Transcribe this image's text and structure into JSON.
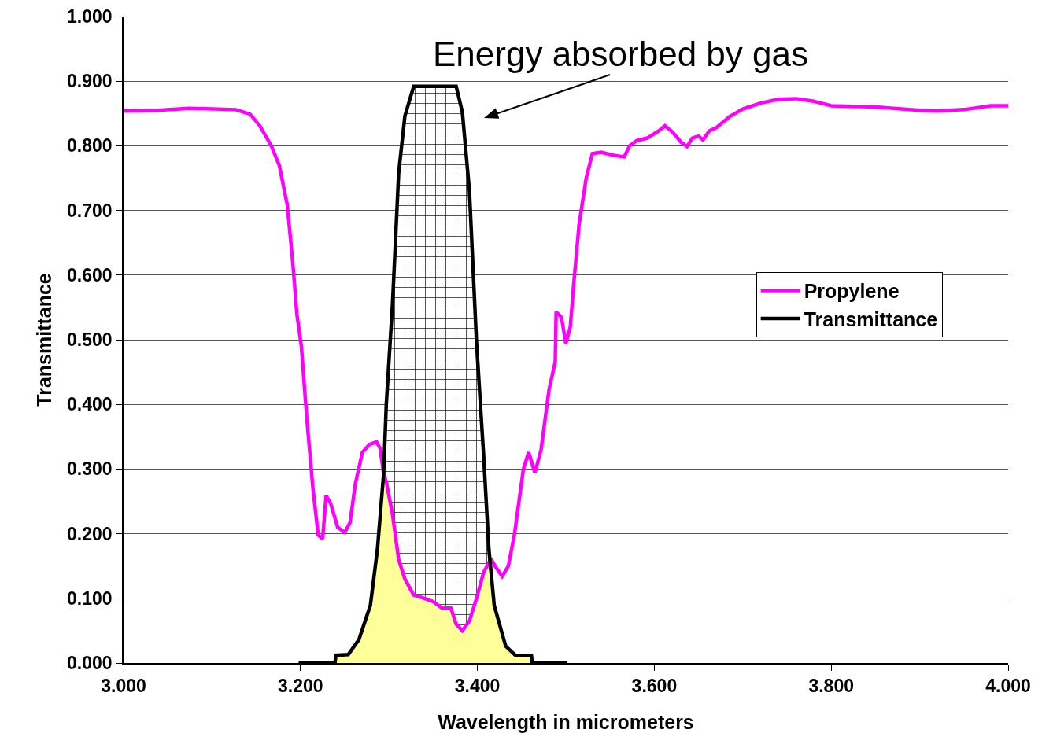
{
  "chart_data": {
    "type": "line",
    "xlabel": "Wavelength in micrometers",
    "ylabel": "Transmittance",
    "xlim": [
      3.0,
      4.0
    ],
    "ylim": [
      0,
      1
    ],
    "xticks": [
      {
        "value": 3.0,
        "label": "3.000"
      },
      {
        "value": 3.2,
        "label": "3.200"
      },
      {
        "value": 3.4,
        "label": "3.400"
      },
      {
        "value": 3.6,
        "label": "3.600"
      },
      {
        "value": 3.8,
        "label": "3.800"
      },
      {
        "value": 4.0,
        "label": "4.000"
      }
    ],
    "yticks": [
      {
        "value": 0,
        "label": "0.000"
      },
      {
        "value": 0.1,
        "label": "0.100"
      },
      {
        "value": 0.2,
        "label": "0.200"
      },
      {
        "value": 0.3,
        "label": "0.300"
      },
      {
        "value": 0.4,
        "label": "0.400"
      },
      {
        "value": 0.5,
        "label": "0.500"
      },
      {
        "value": 0.6,
        "label": "0.600"
      },
      {
        "value": 0.7,
        "label": "0.700"
      },
      {
        "value": 0.8,
        "label": "0.800"
      },
      {
        "value": 0.9,
        "label": "0.900"
      },
      {
        "value": 1.0,
        "label": "1.000"
      }
    ],
    "grid": "y",
    "legend": "right",
    "marker": "none",
    "line_style": "solid",
    "annotations": [
      "Energy absorbed by gas"
    ],
    "series": [
      {
        "type": "area",
        "color": "#ffff99",
        "x": [
          3.198,
          3.239,
          3.24,
          3.254,
          3.266,
          3.279,
          3.287,
          3.294,
          3.297,
          3.304,
          3.311,
          3.318,
          3.328,
          3.34,
          3.35,
          3.36,
          3.37,
          3.376,
          3.383,
          3.391,
          3.399,
          3.407,
          3.413,
          3.419,
          3.432,
          3.443,
          3.461,
          3.462,
          3.501
        ],
        "values": [
          0,
          0,
          0.012,
          0.013,
          0.036,
          0.089,
          0.176,
          0.293,
          0.28,
          0.23,
          0.16,
          0.13,
          0.105,
          0.1,
          0.095,
          0.085,
          0.085,
          0.06,
          0.05,
          0.065,
          0.1,
          0.14,
          0.155,
          0.089,
          0.026,
          0.012,
          0.012,
          0,
          0
        ]
      },
      {
        "name": "Propylene",
        "color": "#ff00ff",
        "x": [
          3.0,
          3.038,
          3.074,
          3.127,
          3.143,
          3.154,
          3.167,
          3.176,
          3.185,
          3.191,
          3.196,
          3.201,
          3.207,
          3.214,
          3.22,
          3.225,
          3.229,
          3.234,
          3.242,
          3.25,
          3.256,
          3.262,
          3.27,
          3.278,
          3.286,
          3.29,
          3.294,
          3.297,
          3.304,
          3.311,
          3.318,
          3.328,
          3.34,
          3.35,
          3.36,
          3.37,
          3.376,
          3.383,
          3.391,
          3.399,
          3.407,
          3.413,
          3.415,
          3.42,
          3.428,
          3.435,
          3.442,
          3.452,
          3.458,
          3.465,
          3.472,
          3.481,
          3.488,
          3.489,
          3.495,
          3.5,
          3.505,
          3.509,
          3.515,
          3.523,
          3.53,
          3.54,
          3.555,
          3.566,
          3.572,
          3.58,
          3.592,
          3.605,
          3.612,
          3.62,
          3.63,
          3.637,
          3.643,
          3.65,
          3.655,
          3.662,
          3.67,
          3.685,
          3.7,
          3.72,
          3.74,
          3.76,
          3.78,
          3.8,
          3.85,
          3.9,
          3.92,
          3.95,
          3.98,
          4.0
        ],
        "values": [
          0.854,
          0.855,
          0.858,
          0.856,
          0.849,
          0.831,
          0.8,
          0.77,
          0.709,
          0.624,
          0.539,
          0.49,
          0.381,
          0.271,
          0.198,
          0.192,
          0.259,
          0.247,
          0.21,
          0.202,
          0.217,
          0.277,
          0.326,
          0.338,
          0.342,
          0.332,
          0.293,
          0.28,
          0.23,
          0.16,
          0.13,
          0.105,
          0.1,
          0.095,
          0.085,
          0.085,
          0.06,
          0.05,
          0.065,
          0.1,
          0.14,
          0.155,
          0.162,
          0.15,
          0.134,
          0.15,
          0.2,
          0.3,
          0.326,
          0.294,
          0.33,
          0.423,
          0.466,
          0.543,
          0.535,
          0.494,
          0.52,
          0.588,
          0.679,
          0.75,
          0.788,
          0.79,
          0.785,
          0.783,
          0.8,
          0.808,
          0.812,
          0.823,
          0.831,
          0.822,
          0.806,
          0.799,
          0.812,
          0.815,
          0.809,
          0.823,
          0.828,
          0.845,
          0.857,
          0.866,
          0.872,
          0.873,
          0.869,
          0.862,
          0.86,
          0.855,
          0.854,
          0.856,
          0.862,
          0.862
        ]
      },
      {
        "name": "Transmittance",
        "color": "#000000",
        "x": [
          3.198,
          3.239,
          3.24,
          3.254,
          3.266,
          3.279,
          3.287,
          3.294,
          3.297,
          3.304,
          3.311,
          3.318,
          3.328,
          3.34,
          3.35,
          3.36,
          3.37,
          3.376,
          3.383,
          3.391,
          3.399,
          3.407,
          3.413,
          3.419,
          3.432,
          3.443,
          3.461,
          3.462,
          3.501
        ],
        "values": [
          0,
          0,
          0.012,
          0.013,
          0.036,
          0.089,
          0.176,
          0.293,
          0.4,
          0.555,
          0.758,
          0.846,
          0.892,
          0.892,
          0.892,
          0.892,
          0.892,
          0.892,
          0.852,
          0.73,
          0.496,
          0.322,
          0.176,
          0.089,
          0.026,
          0.012,
          0.012,
          0,
          0
        ],
        "lower": [
          0,
          0,
          0.012,
          0.013,
          0.036,
          0.089,
          0.176,
          0.293,
          0.28,
          0.23,
          0.16,
          0.13,
          0.105,
          0.1,
          0.095,
          0.085,
          0.085,
          0.06,
          0.05,
          0.065,
          0.1,
          0.14,
          0.155,
          0.089,
          0.026,
          0.012,
          0.012,
          0,
          0
        ],
        "upper": [
          0,
          0,
          0.012,
          0.013,
          0.036,
          0.089,
          0.176,
          0.293,
          0.4,
          0.555,
          0.758,
          0.846,
          0.892,
          0.892,
          0.892,
          0.892,
          0.892,
          0.892,
          0.852,
          0.73,
          0.496,
          0.322,
          0.176,
          0.089,
          0.026,
          0.012,
          0.012,
          0,
          0
        ]
      }
    ]
  }
}
